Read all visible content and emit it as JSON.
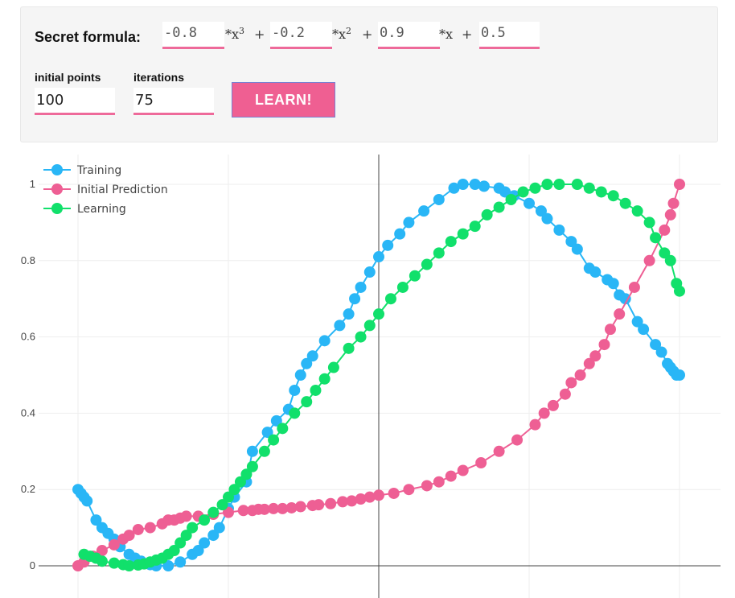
{
  "form": {
    "formula_label": "Secret formula:",
    "coefficients": [
      "-0.8",
      "-0.2",
      "0.9",
      "0.5"
    ],
    "operators": {
      "x3_prefix": "*x",
      "x3_power": "3",
      "plus1": "+",
      "x2_prefix": "*x",
      "x2_power": "2",
      "plus2": "+",
      "x1": "*x",
      "plus3": "+"
    },
    "initial_points_label": "initial points",
    "initial_points_value": "100",
    "iterations_label": "iterations",
    "iterations_value": "75",
    "learn_label": "LEARN!"
  },
  "chart_data": {
    "type": "line",
    "xlim": [
      -1,
      1
    ],
    "ylim": [
      -0.03,
      1.02
    ],
    "yticks": [
      "0",
      "0.2",
      "0.4",
      "0.6",
      "0.8",
      "1"
    ],
    "grid": true,
    "legend_position": "top-left",
    "colors": {
      "training": "#29b6f6",
      "initial": "#ee5f94",
      "learning": "#11e06b",
      "grid": "#eeeeee"
    },
    "series": [
      {
        "name": "Training",
        "color": "#29b6f6",
        "x": [
          -1.0,
          -0.99,
          -0.98,
          -0.97,
          -0.94,
          -0.92,
          -0.9,
          -0.88,
          -0.86,
          -0.83,
          -0.81,
          -0.79,
          -0.76,
          -0.74,
          -0.7,
          -0.66,
          -0.62,
          -0.6,
          -0.58,
          -0.55,
          -0.53,
          -0.5,
          -0.48,
          -0.44,
          -0.42,
          -0.37,
          -0.34,
          -0.3,
          -0.28,
          -0.26,
          -0.24,
          -0.22,
          -0.18,
          -0.13,
          -0.1,
          -0.08,
          -0.06,
          -0.03,
          0.0,
          0.03,
          0.07,
          0.1,
          0.15,
          0.2,
          0.25,
          0.28,
          0.32,
          0.35,
          0.4,
          0.42,
          0.45,
          0.5,
          0.54,
          0.56,
          0.6,
          0.64,
          0.66,
          0.7,
          0.72,
          0.76,
          0.78,
          0.8,
          0.82,
          0.86,
          0.88,
          0.92,
          0.94,
          0.96,
          0.97,
          0.98,
          0.99,
          1.0
        ],
        "y": [
          0.2,
          0.19,
          0.18,
          0.17,
          0.12,
          0.1,
          0.085,
          0.07,
          0.05,
          0.03,
          0.02,
          0.012,
          0.003,
          0.0,
          0.0,
          0.01,
          0.03,
          0.04,
          0.06,
          0.08,
          0.1,
          0.15,
          0.18,
          0.22,
          0.3,
          0.35,
          0.38,
          0.41,
          0.46,
          0.5,
          0.53,
          0.55,
          0.59,
          0.63,
          0.66,
          0.7,
          0.73,
          0.77,
          0.81,
          0.84,
          0.87,
          0.9,
          0.93,
          0.96,
          0.99,
          1.0,
          1.0,
          0.995,
          0.99,
          0.98,
          0.97,
          0.95,
          0.93,
          0.91,
          0.88,
          0.85,
          0.83,
          0.78,
          0.77,
          0.75,
          0.74,
          0.71,
          0.7,
          0.64,
          0.62,
          0.58,
          0.56,
          0.53,
          0.52,
          0.51,
          0.5,
          0.5
        ]
      },
      {
        "name": "Initial Prediction",
        "color": "#ee5f94",
        "x": [
          -1.0,
          -0.98,
          -0.95,
          -0.92,
          -0.88,
          -0.85,
          -0.83,
          -0.8,
          -0.76,
          -0.72,
          -0.7,
          -0.68,
          -0.66,
          -0.64,
          -0.6,
          -0.55,
          -0.5,
          -0.45,
          -0.42,
          -0.4,
          -0.38,
          -0.35,
          -0.32,
          -0.29,
          -0.26,
          -0.22,
          -0.2,
          -0.16,
          -0.12,
          -0.09,
          -0.06,
          -0.03,
          0.0,
          0.05,
          0.1,
          0.16,
          0.2,
          0.24,
          0.28,
          0.34,
          0.4,
          0.46,
          0.52,
          0.55,
          0.58,
          0.62,
          0.64,
          0.67,
          0.7,
          0.72,
          0.75,
          0.77,
          0.8,
          0.85,
          0.9,
          0.95,
          0.97,
          0.98,
          1.0
        ],
        "y": [
          0.0,
          0.01,
          0.025,
          0.04,
          0.055,
          0.07,
          0.08,
          0.095,
          0.1,
          0.11,
          0.12,
          0.12,
          0.125,
          0.13,
          0.13,
          0.135,
          0.14,
          0.145,
          0.145,
          0.148,
          0.148,
          0.15,
          0.15,
          0.152,
          0.155,
          0.158,
          0.16,
          0.163,
          0.168,
          0.17,
          0.175,
          0.18,
          0.185,
          0.19,
          0.2,
          0.21,
          0.22,
          0.235,
          0.25,
          0.27,
          0.3,
          0.33,
          0.37,
          0.4,
          0.42,
          0.45,
          0.48,
          0.5,
          0.53,
          0.55,
          0.58,
          0.62,
          0.66,
          0.73,
          0.8,
          0.88,
          0.92,
          0.95,
          1.0
        ]
      },
      {
        "name": "Learning",
        "color": "#11e06b",
        "x": [
          -0.98,
          -0.96,
          -0.94,
          -0.92,
          -0.88,
          -0.85,
          -0.83,
          -0.8,
          -0.78,
          -0.76,
          -0.74,
          -0.72,
          -0.7,
          -0.68,
          -0.66,
          -0.64,
          -0.62,
          -0.58,
          -0.55,
          -0.52,
          -0.5,
          -0.48,
          -0.46,
          -0.44,
          -0.42,
          -0.38,
          -0.35,
          -0.32,
          -0.28,
          -0.24,
          -0.21,
          -0.18,
          -0.15,
          -0.1,
          -0.06,
          -0.03,
          0.0,
          0.04,
          0.08,
          0.12,
          0.16,
          0.2,
          0.24,
          0.28,
          0.32,
          0.36,
          0.4,
          0.44,
          0.48,
          0.52,
          0.56,
          0.6,
          0.66,
          0.7,
          0.74,
          0.78,
          0.82,
          0.86,
          0.9,
          0.92,
          0.95,
          0.97,
          0.99,
          1.0
        ],
        "y": [
          0.03,
          0.025,
          0.02,
          0.012,
          0.007,
          0.003,
          0.0,
          0.002,
          0.005,
          0.01,
          0.015,
          0.02,
          0.03,
          0.04,
          0.06,
          0.08,
          0.1,
          0.12,
          0.14,
          0.16,
          0.18,
          0.2,
          0.22,
          0.24,
          0.26,
          0.3,
          0.33,
          0.36,
          0.4,
          0.43,
          0.46,
          0.49,
          0.52,
          0.57,
          0.6,
          0.63,
          0.66,
          0.7,
          0.73,
          0.76,
          0.79,
          0.82,
          0.85,
          0.87,
          0.89,
          0.92,
          0.94,
          0.96,
          0.98,
          0.99,
          1.0,
          1.0,
          1.0,
          0.99,
          0.98,
          0.97,
          0.95,
          0.93,
          0.9,
          0.86,
          0.82,
          0.8,
          0.74,
          0.72
        ]
      }
    ]
  }
}
